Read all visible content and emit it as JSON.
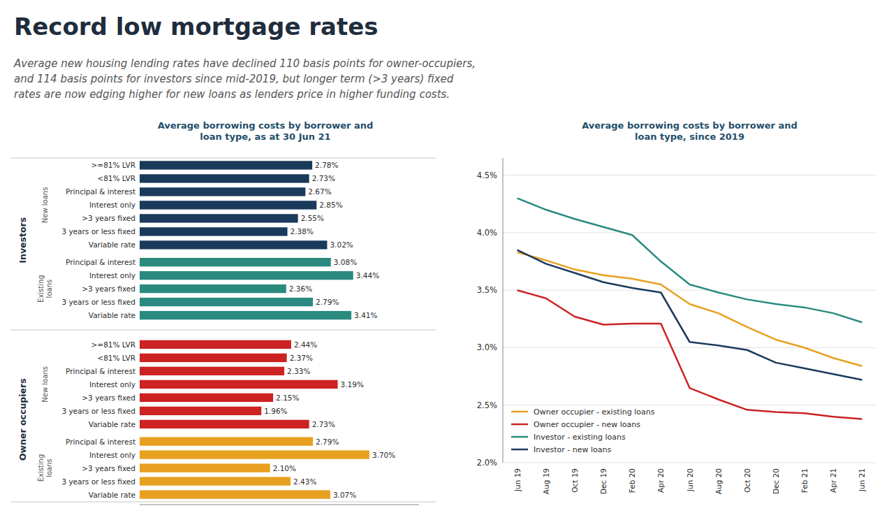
{
  "title": "Record low mortgage rates",
  "subtitle": "Average new housing lending rates have declined 110 basis points for owner-occupiers,\nand 114 basis points for investors since mid-2019, but longer term (>3 years) fixed\nrates are now edging higher for new loans as lenders price in higher funding costs.",
  "chart_data": [
    {
      "type": "bar",
      "orientation": "horizontal",
      "title": "Average borrowing costs by borrower and\nloan type, as at 30 Jun 21",
      "xlim": [
        0,
        4.5
      ],
      "tick_labels": "y",
      "data_labels": true,
      "groups": [
        {
          "label": "Investors",
          "series": [
            {
              "label": "New loans",
              "color": "#1a3a5c",
              "categories": [
                ">=81% LVR",
                "<81% LVR",
                "Principal & interest",
                "Interest only",
                ">3 years fixed",
                "3 years or less fixed",
                "Variable rate"
              ],
              "values": [
                2.78,
                2.73,
                2.67,
                2.85,
                2.55,
                2.38,
                3.02
              ],
              "value_labels": [
                "2.78%",
                "2.73%",
                "2.67%",
                "2.85%",
                "2.55%",
                "2.38%",
                "3.02%"
              ]
            },
            {
              "label": "Existing\nloans",
              "color": "#2a8a80",
              "categories": [
                "Principal & interest",
                "Interest only",
                ">3 years fixed",
                "3 years or less fixed",
                "Variable rate"
              ],
              "values": [
                3.08,
                3.44,
                2.36,
                2.79,
                3.41
              ],
              "value_labels": [
                "3.08%",
                "3.44%",
                "2.36%",
                "2.79%",
                "3.41%"
              ]
            }
          ]
        },
        {
          "label": "Owner occupiers",
          "series": [
            {
              "label": "New loans",
              "color": "#cc2222",
              "categories": [
                ">=81% LVR",
                "<81% LVR",
                "Principal & interest",
                "Interest only",
                ">3 years fixed",
                "3 years or less fixed",
                "Variable rate"
              ],
              "values": [
                2.44,
                2.37,
                2.33,
                3.19,
                2.15,
                1.96,
                2.73
              ],
              "value_labels": [
                "2.44%",
                "2.37%",
                "2.33%",
                "3.19%",
                "2.15%",
                "1.96%",
                "2.73%"
              ]
            },
            {
              "label": "Existing\nloans",
              "color": "#e8a020",
              "categories": [
                "Principal & interest",
                "Interest only",
                ">3 years fixed",
                "3 years or less fixed",
                "Variable rate"
              ],
              "values": [
                2.79,
                3.7,
                2.1,
                2.43,
                3.07
              ],
              "value_labels": [
                "2.79%",
                "3.70%",
                "2.10%",
                "2.43%",
                "3.07%"
              ]
            }
          ]
        }
      ]
    },
    {
      "type": "line",
      "title": "Average borrowing costs by borrower and\nloan type, since 2019",
      "categories": [
        "Jun 19",
        "Aug 19",
        "Oct 19",
        "Dec 19",
        "Feb 20",
        "Apr 20",
        "Jun 20",
        "Aug 20",
        "Oct 20",
        "Dec 20",
        "Feb 21",
        "Apr 21",
        "Jun 21"
      ],
      "series": [
        {
          "name": "Owner occupier - existing loans",
          "color": "#e8a020",
          "values": [
            3.83,
            3.76,
            3.68,
            3.63,
            3.6,
            3.55,
            3.38,
            3.3,
            3.18,
            3.07,
            3.0,
            2.91,
            2.84
          ]
        },
        {
          "name": "Owner occupier - new loans",
          "color": "#cc2222",
          "values": [
            3.5,
            3.43,
            3.27,
            3.2,
            3.21,
            3.21,
            2.65,
            2.55,
            2.46,
            2.44,
            2.43,
            2.4,
            2.38
          ]
        },
        {
          "name": "Investor - existing loans",
          "color": "#2a8a80",
          "values": [
            4.3,
            4.2,
            4.12,
            4.05,
            3.98,
            3.75,
            3.55,
            3.48,
            3.42,
            3.38,
            3.35,
            3.3,
            3.22
          ]
        },
        {
          "name": "Investor - new loans",
          "color": "#1a3a5c",
          "values": [
            3.85,
            3.73,
            3.65,
            3.57,
            3.52,
            3.48,
            3.05,
            3.02,
            2.98,
            2.87,
            2.82,
            2.77,
            2.72
          ]
        }
      ],
      "ylim": [
        2.0,
        4.65
      ],
      "yticks": [
        {
          "value": 2.0,
          "label": "2.0%"
        },
        {
          "value": 2.5,
          "label": "2.5%"
        },
        {
          "value": 3.0,
          "label": "3.0%"
        },
        {
          "value": 3.5,
          "label": "3.5%"
        },
        {
          "value": 4.0,
          "label": "4.0%"
        },
        {
          "value": 4.5,
          "label": "4.5%"
        }
      ],
      "grid": true,
      "legend": "lower left"
    }
  ]
}
